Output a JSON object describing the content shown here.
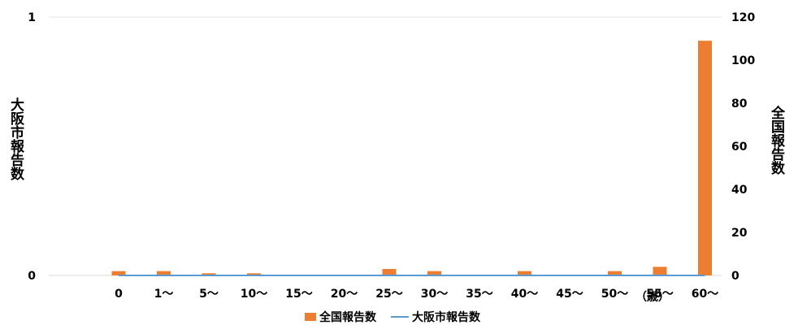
{
  "chart_data": {
    "type": "bar",
    "title": "",
    "categories": [
      "0",
      "1～",
      "5～",
      "10～",
      "15～",
      "20～",
      "25～",
      "30～",
      "35～",
      "40～",
      "45～",
      "50～",
      "55～",
      "60～"
    ],
    "x_unit_label": "（歳）",
    "series": [
      {
        "name": "全国報告数",
        "kind": "bar",
        "axis": "right",
        "color": "#ED7D31",
        "values": [
          2,
          2,
          1,
          1,
          0,
          0,
          3,
          2,
          0,
          2,
          0,
          2,
          4,
          109
        ]
      },
      {
        "name": "大阪市報告数",
        "kind": "line",
        "axis": "left",
        "color": "#5B9BD5",
        "values": [
          0,
          0,
          0,
          0,
          0,
          0,
          0,
          0,
          0,
          0,
          0,
          0,
          0,
          0
        ]
      }
    ],
    "y_left": {
      "label": "大阪市報告数",
      "lim": [
        0,
        1
      ],
      "ticks": [
        "0",
        "1"
      ]
    },
    "y_right": {
      "label": "全国報告数",
      "lim": [
        0,
        120
      ],
      "ticks": [
        "0",
        "20",
        "40",
        "60",
        "80",
        "100",
        "120"
      ]
    },
    "grid": true,
    "legend_position": "bottom"
  }
}
